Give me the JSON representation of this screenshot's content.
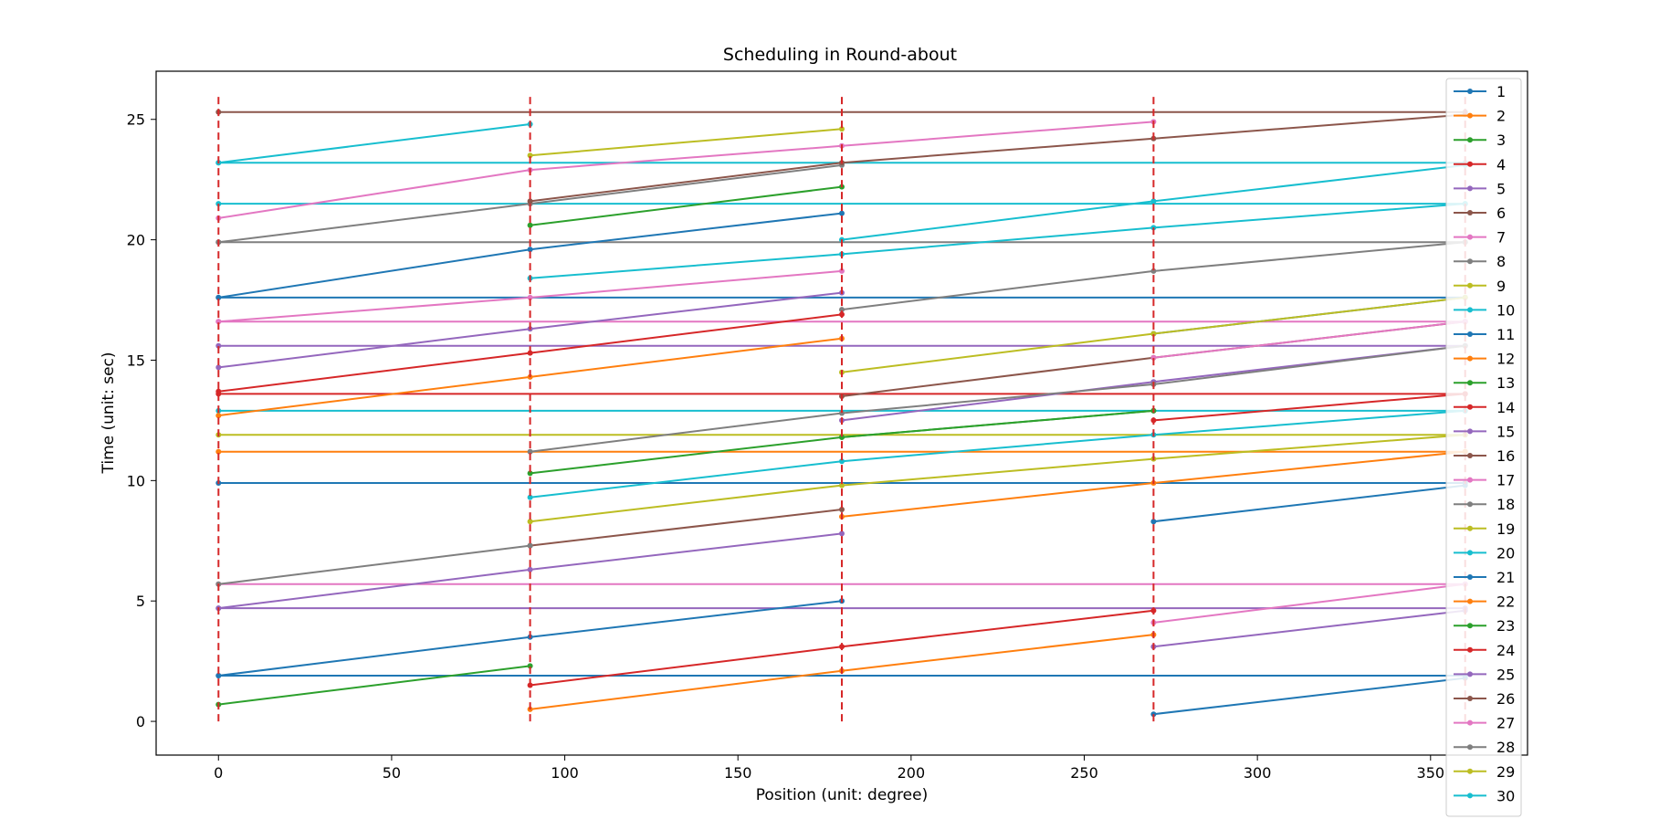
{
  "chart_data": {
    "type": "line",
    "title": "Scheduling in Round-about",
    "xlabel": "Position (unit: degree)",
    "ylabel": "Time (unit: sec)",
    "xlim": [
      -18,
      378
    ],
    "ylim": [
      -1.4,
      27
    ],
    "xticks": [
      0,
      50,
      100,
      150,
      200,
      250,
      300,
      350
    ],
    "yticks": [
      0,
      5,
      10,
      15,
      20,
      25
    ],
    "grid": false,
    "legend_position": "right",
    "vlines": {
      "x": [
        0,
        90,
        180,
        270,
        360
      ],
      "ymin": 0,
      "ymax": 26,
      "color": "#d62728",
      "style": "dashed"
    },
    "series": [
      {
        "name": "1",
        "color": "#1f77b4",
        "x": [
          270,
          360
        ],
        "y": [
          0.3,
          1.8
        ]
      },
      {
        "name": "2",
        "color": "#ff7f0e",
        "x": [
          90,
          180,
          270
        ],
        "y": [
          0.5,
          2.1,
          3.6
        ]
      },
      {
        "name": "3",
        "color": "#2ca02c",
        "x": [
          0,
          90
        ],
        "y": [
          0.7,
          2.3
        ]
      },
      {
        "name": "4",
        "color": "#d62728",
        "x": [
          90,
          180,
          270
        ],
        "y": [
          1.5,
          3.1,
          4.6
        ]
      },
      {
        "name": "5",
        "color": "#9467bd",
        "x": [
          270,
          360
        ],
        "y": [
          3.1,
          4.6
        ]
      },
      {
        "name": "6",
        "color": "#8c564b",
        "x": [],
        "y": []
      },
      {
        "name": "7",
        "color": "#e377c2",
        "x": [
          270,
          360
        ],
        "y": [
          4.1,
          5.7
        ]
      },
      {
        "name": "8",
        "color": "#7f7f7f",
        "x": [],
        "y": []
      },
      {
        "name": "9",
        "color": "#bcbd22",
        "x": [],
        "y": []
      },
      {
        "name": "10",
        "color": "#17becf",
        "x": [],
        "y": []
      },
      {
        "name": "11",
        "color": "#1f77b4",
        "x": [
          0,
          90,
          180
        ],
        "y": [
          1.9,
          3.5,
          5.0
        ]
      },
      {
        "name": "12",
        "color": "#ff7f0e",
        "x": [
          180,
          270,
          360
        ],
        "y": [
          8.5,
          9.9,
          11.2
        ]
      },
      {
        "name": "13",
        "color": "#2ca02c",
        "x": [
          90,
          180,
          270
        ],
        "y": [
          10.3,
          11.8,
          12.9
        ]
      },
      {
        "name": "14",
        "color": "#d62728",
        "x": [
          270,
          360
        ],
        "y": [
          12.5,
          13.6
        ]
      },
      {
        "name": "15",
        "color": "#9467bd",
        "x": [
          0,
          90,
          180
        ],
        "y": [
          4.7,
          6.3,
          7.8
        ]
      },
      {
        "name": "16",
        "color": "#8c564b",
        "x": [
          90,
          180
        ],
        "y": [
          7.3,
          8.8
        ]
      },
      {
        "name": "17",
        "color": "#e377c2",
        "x": [],
        "y": []
      },
      {
        "name": "18",
        "color": "#7f7f7f",
        "x": [
          0,
          90
        ],
        "y": [
          5.7,
          7.3
        ]
      },
      {
        "name": "19",
        "color": "#bcbd22",
        "x": [
          90,
          180,
          270,
          360
        ],
        "y": [
          8.3,
          9.8,
          10.9,
          11.9
        ]
      },
      {
        "name": "20",
        "color": "#17becf",
        "x": [
          90,
          180,
          270,
          360
        ],
        "y": [
          9.3,
          10.8,
          11.9,
          12.9
        ]
      },
      {
        "name": "21",
        "color": "#1f77b4",
        "x": [
          270,
          360
        ],
        "y": [
          8.3,
          9.8
        ]
      },
      {
        "name": "22",
        "color": "#ff7f0e",
        "x": [
          0,
          90,
          180
        ],
        "y": [
          12.7,
          14.3,
          15.9
        ]
      },
      {
        "name": "23",
        "color": "#2ca02c",
        "x": [
          180,
          270
        ],
        "y": [
          11.8,
          12.9
        ]
      },
      {
        "name": "24",
        "color": "#d62728",
        "x": [
          0,
          90,
          180
        ],
        "y": [
          13.7,
          15.3,
          16.9
        ]
      },
      {
        "name": "25",
        "color": "#9467bd",
        "x": [
          180,
          270,
          360
        ],
        "y": [
          12.5,
          14.1,
          15.6
        ]
      },
      {
        "name": "26",
        "color": "#8c564b",
        "x": [
          180,
          270,
          360
        ],
        "y": [
          13.5,
          15.1,
          16.6
        ]
      },
      {
        "name": "27",
        "color": "#e377c2",
        "x": [
          270,
          360
        ],
        "y": [
          15.1,
          16.6
        ]
      },
      {
        "name": "28",
        "color": "#7f7f7f",
        "x": [
          90,
          180,
          270,
          360
        ],
        "y": [
          11.2,
          12.8,
          14.0,
          15.6
        ]
      },
      {
        "name": "29",
        "color": "#bcbd22",
        "x": [
          180,
          270,
          360
        ],
        "y": [
          14.5,
          16.1,
          17.6
        ]
      },
      {
        "name": "30",
        "color": "#17becf",
        "x": [
          90,
          180,
          270,
          360
        ],
        "y": [
          18.4,
          19.4,
          20.5,
          21.5
        ]
      }
    ],
    "extra_lines": [
      {
        "color": "#1f77b4",
        "x": [
          0,
          360
        ],
        "y": [
          1.9,
          1.9
        ]
      },
      {
        "color": "#9467bd",
        "x": [
          0,
          360
        ],
        "y": [
          4.7,
          4.7
        ]
      },
      {
        "color": "#e377c2",
        "x": [
          0,
          360
        ],
        "y": [
          5.7,
          5.7
        ]
      },
      {
        "color": "#1f77b4",
        "x": [
          0,
          360
        ],
        "y": [
          9.9,
          9.9
        ]
      },
      {
        "color": "#ff7f0e",
        "x": [
          0,
          360
        ],
        "y": [
          11.2,
          11.2
        ]
      },
      {
        "color": "#bcbd22",
        "x": [
          0,
          360
        ],
        "y": [
          11.9,
          11.9
        ]
      },
      {
        "color": "#17becf",
        "x": [
          0,
          360
        ],
        "y": [
          12.9,
          12.9
        ]
      },
      {
        "color": "#d62728",
        "x": [
          0,
          360
        ],
        "y": [
          13.6,
          13.6
        ]
      },
      {
        "color": "#9467bd",
        "x": [
          0,
          360
        ],
        "y": [
          15.6,
          15.6
        ]
      },
      {
        "color": "#e377c2",
        "x": [
          0,
          360
        ],
        "y": [
          16.6,
          16.6
        ]
      },
      {
        "color": "#1f77b4",
        "x": [
          0,
          360
        ],
        "y": [
          17.6,
          17.6
        ]
      },
      {
        "color": "#7f7f7f",
        "x": [
          0,
          360
        ],
        "y": [
          19.9,
          19.9
        ]
      },
      {
        "color": "#17becf",
        "x": [
          0,
          360
        ],
        "y": [
          21.5,
          21.5
        ]
      },
      {
        "color": "#17becf",
        "x": [
          0,
          360
        ],
        "y": [
          23.2,
          23.2
        ]
      },
      {
        "color": "#8c564b",
        "x": [
          0,
          360
        ],
        "y": [
          25.3,
          25.3
        ]
      },
      {
        "color": "#e377c2",
        "x": [
          0,
          90,
          180
        ],
        "y": [
          16.6,
          17.6,
          18.7
        ]
      },
      {
        "color": "#9467bd",
        "x": [
          0,
          90,
          180
        ],
        "y": [
          14.7,
          16.3,
          17.8
        ]
      },
      {
        "color": "#7f7f7f",
        "x": [
          180,
          270,
          360
        ],
        "y": [
          17.1,
          18.7,
          19.9
        ]
      },
      {
        "color": "#1f77b4",
        "x": [
          0,
          90,
          180
        ],
        "y": [
          17.6,
          19.6,
          21.1
        ]
      },
      {
        "color": "#17becf",
        "x": [
          180,
          270,
          360
        ],
        "y": [
          20.0,
          21.6,
          23.1
        ]
      },
      {
        "color": "#2ca02c",
        "x": [
          90,
          180
        ],
        "y": [
          20.6,
          22.2
        ]
      },
      {
        "color": "#7f7f7f",
        "x": [
          0,
          90,
          180
        ],
        "y": [
          19.9,
          21.5,
          23.1
        ]
      },
      {
        "color": "#8c564b",
        "x": [
          90,
          180,
          270,
          360
        ],
        "y": [
          21.6,
          23.2,
          24.2,
          25.2
        ]
      },
      {
        "color": "#e377c2",
        "x": [
          0,
          90,
          180,
          270
        ],
        "y": [
          20.9,
          22.9,
          23.9,
          24.9
        ]
      },
      {
        "color": "#bcbd22",
        "x": [
          90,
          180
        ],
        "y": [
          23.5,
          24.6
        ]
      },
      {
        "color": "#17becf",
        "x": [
          0,
          90
        ],
        "y": [
          23.2,
          24.8
        ]
      },
      {
        "color": "#1f77b4",
        "x": [
          270,
          360
        ],
        "y": [
          16.1,
          17.6
        ]
      }
    ]
  }
}
